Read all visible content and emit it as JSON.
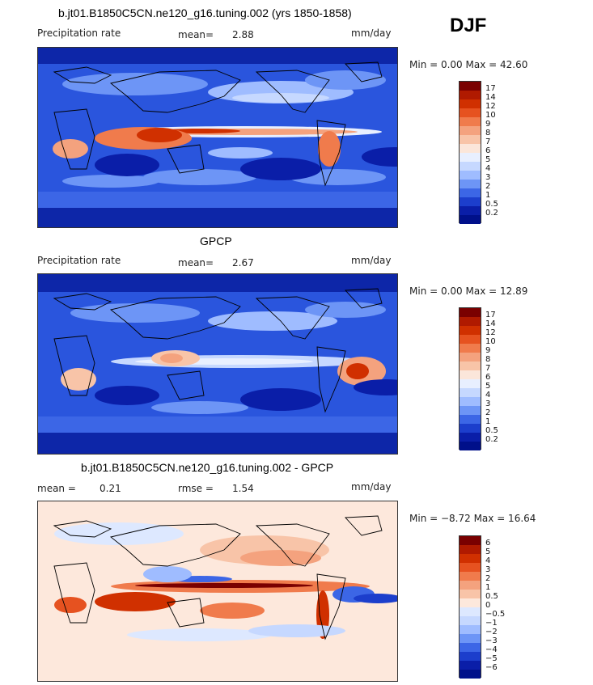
{
  "season": "DJF",
  "panels": [
    {
      "title": "b.jt01.B1850C5CN.ne120_g16.tuning.002 (yrs 1850-1858)",
      "left_label": "Precipitation rate",
      "stat1_label": "mean=",
      "stat1_value": "2.88",
      "units": "mm/day",
      "minmax": "Min =   0.00 Max =  42.60",
      "palette": "precip",
      "levels": [
        "17",
        "14",
        "12",
        "10",
        "9",
        "8",
        "7",
        "6",
        "5",
        "4",
        "3",
        "2",
        "1",
        "0.5",
        "0.2"
      ],
      "colors": [
        "#7a0000",
        "#b01a00",
        "#d03000",
        "#e65220",
        "#f07b4c",
        "#f4a27e",
        "#f8c4a8",
        "#fbe6da",
        "#e8efff",
        "#c6d8ff",
        "#9fbcff",
        "#6d95f6",
        "#3c66e6",
        "#1c3ecc",
        "#0a1ea8",
        "#00108a"
      ]
    },
    {
      "title": "GPCP",
      "left_label": "Precipitation rate",
      "stat1_label": "mean=",
      "stat1_value": "2.67",
      "units": "mm/day",
      "minmax": "Min =   0.00 Max =  12.89",
      "palette": "precip",
      "levels": [
        "17",
        "14",
        "12",
        "10",
        "9",
        "8",
        "7",
        "6",
        "5",
        "4",
        "3",
        "2",
        "1",
        "0.5",
        "0.2"
      ],
      "colors": [
        "#7a0000",
        "#b01a00",
        "#d03000",
        "#e65220",
        "#f07b4c",
        "#f4a27e",
        "#f8c4a8",
        "#fbe6da",
        "#e8efff",
        "#c6d8ff",
        "#9fbcff",
        "#6d95f6",
        "#3c66e6",
        "#1c3ecc",
        "#0a1ea8",
        "#00108a"
      ]
    },
    {
      "title": "b.jt01.B1850C5CN.ne120_g16.tuning.002 - GPCP",
      "left_label": "mean =",
      "left_value": "0.21",
      "stat1_label": "rmse =",
      "stat1_value": "1.54",
      "units": "mm/day",
      "minmax": "Min =  −8.72 Max =  16.64",
      "palette": "diff",
      "levels": [
        "6",
        "5",
        "4",
        "3",
        "2",
        "1",
        "0.5",
        "0",
        "−0.5",
        "−1",
        "−2",
        "−3",
        "−4",
        "−5",
        "−6"
      ],
      "colors": [
        "#7a0000",
        "#b01a00",
        "#d03000",
        "#e65220",
        "#f07b4c",
        "#f4a27e",
        "#f8c4a8",
        "#fde8dc",
        "#dde8ff",
        "#c6d8ff",
        "#9fbcff",
        "#6d95f6",
        "#3c66e6",
        "#1c3ecc",
        "#0a1ea8",
        "#00108a"
      ]
    }
  ]
}
